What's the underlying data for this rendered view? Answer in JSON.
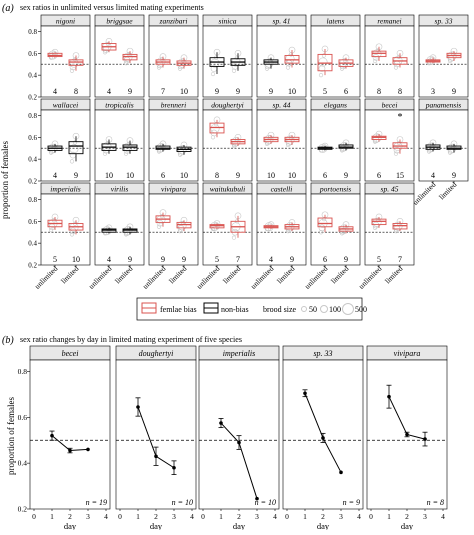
{
  "panel_a": {
    "letter": "(a)",
    "title": "sex ratios in unlimited versus limited mating experiments",
    "ylabel": "proportion of females",
    "yticks": [
      "0.8",
      "0.6",
      "0.4",
      "0.2"
    ],
    "ref_line": 0.5,
    "xtick_labels": [
      "unlimited",
      "limited"
    ],
    "legend": {
      "bias_label": "femlae bias",
      "nonbias_label": "non-bias",
      "size_title": "brood size",
      "size_values": [
        "50",
        "100",
        "500"
      ]
    },
    "colors": {
      "bias": "#d9534f",
      "nonbias": "#000000",
      "points": "#c8c8c8",
      "strip": "#e8e8e8"
    }
  },
  "panel_b": {
    "letter": "(b)",
    "title": "sex ratio changes by day in limited mating experiment of five species",
    "ylabel": "proportion of females",
    "xlabel": "day",
    "yticks": [
      "0.8",
      "0.6",
      "0.4",
      "0.2"
    ],
    "xticks": [
      "0",
      "1",
      "2",
      "3",
      "4"
    ]
  },
  "chart_data": [
    {
      "type": "box",
      "title": "sex ratios in unlimited versus limited mating experiments",
      "ylabel": "proportion of females",
      "ylim": [
        0.2,
        0.85
      ],
      "reference_line": 0.5,
      "categories": [
        "unlimited",
        "limited"
      ],
      "species": [
        {
          "name": "nigoni",
          "n": [
            4,
            8
          ],
          "bias": [
            true,
            true
          ],
          "median": [
            0.58,
            0.52
          ],
          "q1": [
            0.57,
            0.49
          ],
          "q3": [
            0.6,
            0.54
          ],
          "min": [
            0.56,
            0.44
          ],
          "max": [
            0.61,
            0.58
          ]
        },
        {
          "name": "briggsae",
          "n": [
            4,
            9
          ],
          "bias": [
            true,
            true
          ],
          "median": [
            0.66,
            0.57
          ],
          "q1": [
            0.63,
            0.54
          ],
          "q3": [
            0.69,
            0.59
          ],
          "min": [
            0.61,
            0.51
          ],
          "max": [
            0.71,
            0.62
          ]
        },
        {
          "name": "zanzibari",
          "n": [
            7,
            10
          ],
          "bias": [
            true,
            true
          ],
          "median": [
            0.52,
            0.51
          ],
          "q1": [
            0.5,
            0.49
          ],
          "q3": [
            0.54,
            0.53
          ],
          "min": [
            0.47,
            0.46
          ],
          "max": [
            0.57,
            0.56
          ]
        },
        {
          "name": "sinica",
          "n": [
            9,
            9
          ],
          "bias": [
            false,
            false
          ],
          "median": [
            0.52,
            0.52
          ],
          "q1": [
            0.48,
            0.49
          ],
          "q3": [
            0.56,
            0.55
          ],
          "min": [
            0.41,
            0.44
          ],
          "max": [
            0.61,
            0.6
          ]
        },
        {
          "name": "sp. 41",
          "n": [
            9,
            10
          ],
          "bias": [
            false,
            true
          ],
          "median": [
            0.52,
            0.54
          ],
          "q1": [
            0.5,
            0.51
          ],
          "q3": [
            0.54,
            0.58
          ],
          "min": [
            0.46,
            0.47
          ],
          "max": [
            0.56,
            0.63
          ]
        },
        {
          "name": "latens",
          "n": [
            5,
            6
          ],
          "bias": [
            true,
            true
          ],
          "median": [
            0.51,
            0.51
          ],
          "q1": [
            0.44,
            0.48
          ],
          "q3": [
            0.59,
            0.54
          ],
          "min": [
            0.4,
            0.46
          ],
          "max": [
            0.64,
            0.56
          ]
        },
        {
          "name": "remanei",
          "n": [
            8,
            8
          ],
          "bias": [
            true,
            true
          ],
          "median": [
            0.6,
            0.53
          ],
          "q1": [
            0.57,
            0.5
          ],
          "q3": [
            0.62,
            0.56
          ],
          "min": [
            0.53,
            0.47
          ],
          "max": [
            0.66,
            0.6
          ]
        },
        {
          "name": "sp. 33",
          "n": [
            3,
            9
          ],
          "bias": [
            true,
            true
          ],
          "median": [
            0.53,
            0.58
          ],
          "q1": [
            0.52,
            0.56
          ],
          "q3": [
            0.54,
            0.6
          ],
          "min": [
            0.51,
            0.53
          ],
          "max": [
            0.56,
            0.62
          ]
        },
        {
          "name": "wallacei",
          "n": [
            4,
            9
          ],
          "bias": [
            false,
            false
          ],
          "median": [
            0.5,
            0.52
          ],
          "q1": [
            0.48,
            0.45
          ],
          "q3": [
            0.52,
            0.56
          ],
          "min": [
            0.46,
            0.38
          ],
          "max": [
            0.54,
            0.61
          ]
        },
        {
          "name": "tropicalis",
          "n": [
            10,
            10
          ],
          "bias": [
            false,
            false
          ],
          "median": [
            0.51,
            0.51
          ],
          "q1": [
            0.48,
            0.48
          ],
          "q3": [
            0.54,
            0.53
          ],
          "min": [
            0.45,
            0.45
          ],
          "max": [
            0.58,
            0.57
          ]
        },
        {
          "name": "brenneri",
          "n": [
            6,
            10
          ],
          "bias": [
            false,
            false
          ],
          "median": [
            0.5,
            0.49
          ],
          "q1": [
            0.49,
            0.47
          ],
          "q3": [
            0.52,
            0.51
          ],
          "min": [
            0.47,
            0.44
          ],
          "max": [
            0.54,
            0.53
          ]
        },
        {
          "name": "doughertyi",
          "n": [
            8,
            9
          ],
          "bias": [
            true,
            true
          ],
          "median": [
            0.69,
            0.56
          ],
          "q1": [
            0.64,
            0.54
          ],
          "q3": [
            0.73,
            0.58
          ],
          "min": [
            0.6,
            0.52
          ],
          "max": [
            0.76,
            0.6
          ]
        },
        {
          "name": "sp. 44",
          "n": [
            10,
            10
          ],
          "bias": [
            true,
            true
          ],
          "median": [
            0.58,
            0.58
          ],
          "q1": [
            0.56,
            0.56
          ],
          "q3": [
            0.6,
            0.6
          ],
          "min": [
            0.54,
            0.53
          ],
          "max": [
            0.62,
            0.62
          ]
        },
        {
          "name": "elegans",
          "n": [
            6,
            9
          ],
          "bias": [
            false,
            false
          ],
          "median": [
            0.5,
            0.51
          ],
          "q1": [
            0.49,
            0.5
          ],
          "q3": [
            0.51,
            0.53
          ],
          "min": [
            0.48,
            0.48
          ],
          "max": [
            0.52,
            0.55
          ]
        },
        {
          "name": "becei",
          "n": [
            6,
            15
          ],
          "bias": [
            true,
            true
          ],
          "median": [
            0.6,
            0.52
          ],
          "q1": [
            0.58,
            0.5
          ],
          "q3": [
            0.61,
            0.55
          ],
          "min": [
            0.56,
            0.45
          ],
          "max": [
            0.63,
            0.58
          ]
        },
        {
          "name": "panamensis",
          "n": [
            4,
            9
          ],
          "bias": [
            false,
            false
          ],
          "median": [
            0.51,
            0.5
          ],
          "q1": [
            0.49,
            0.49
          ],
          "q3": [
            0.53,
            0.52
          ],
          "min": [
            0.47,
            0.46
          ],
          "max": [
            0.55,
            0.54
          ]
        },
        {
          "name": "imperialis",
          "n": [
            5,
            10
          ],
          "bias": [
            true,
            true
          ],
          "median": [
            0.58,
            0.55
          ],
          "q1": [
            0.55,
            0.52
          ],
          "q3": [
            0.61,
            0.58
          ],
          "min": [
            0.52,
            0.48
          ],
          "max": [
            0.64,
            0.61
          ]
        },
        {
          "name": "virilis",
          "n": [
            4,
            9
          ],
          "bias": [
            false,
            false
          ],
          "median": [
            0.52,
            0.52
          ],
          "q1": [
            0.5,
            0.5
          ],
          "q3": [
            0.53,
            0.53
          ],
          "min": [
            0.49,
            0.48
          ],
          "max": [
            0.54,
            0.55
          ]
        },
        {
          "name": "vivipara",
          "n": [
            9,
            9
          ],
          "bias": [
            true,
            true
          ],
          "median": [
            0.62,
            0.57
          ],
          "q1": [
            0.59,
            0.54
          ],
          "q3": [
            0.65,
            0.59
          ],
          "min": [
            0.55,
            0.51
          ],
          "max": [
            0.68,
            0.61
          ]
        },
        {
          "name": "waitukubuli",
          "n": [
            5,
            7
          ],
          "bias": [
            true,
            true
          ],
          "median": [
            0.56,
            0.55
          ],
          "q1": [
            0.54,
            0.5
          ],
          "q3": [
            0.57,
            0.6
          ],
          "min": [
            0.53,
            0.45
          ],
          "max": [
            0.58,
            0.65
          ]
        },
        {
          "name": "castelli",
          "n": [
            4,
            9
          ],
          "bias": [
            true,
            true
          ],
          "median": [
            0.55,
            0.55
          ],
          "q1": [
            0.54,
            0.53
          ],
          "q3": [
            0.56,
            0.57
          ],
          "min": [
            0.53,
            0.51
          ],
          "max": [
            0.57,
            0.59
          ]
        },
        {
          "name": "portoensis",
          "n": [
            6,
            9
          ],
          "bias": [
            true,
            true
          ],
          "median": [
            0.58,
            0.53
          ],
          "q1": [
            0.55,
            0.51
          ],
          "q3": [
            0.63,
            0.55
          ],
          "min": [
            0.5,
            0.49
          ],
          "max": [
            0.66,
            0.57
          ]
        },
        {
          "name": "sp. 45",
          "n": [
            5,
            7
          ],
          "bias": [
            true,
            true
          ],
          "median": [
            0.6,
            0.56
          ],
          "q1": [
            0.57,
            0.53
          ],
          "q3": [
            0.62,
            0.58
          ],
          "min": [
            0.54,
            0.51
          ],
          "max": [
            0.64,
            0.6
          ]
        }
      ],
      "annotation": {
        "species": "becei",
        "text": "*"
      }
    },
    {
      "type": "line",
      "title": "sex ratio changes by day in limited mating experiment of five species",
      "xlabel": "day",
      "ylabel": "proportion of females",
      "xlim": [
        0,
        4
      ],
      "ylim": [
        0.2,
        0.85
      ],
      "reference_line": 0.5,
      "species": [
        {
          "name": "becei",
          "n_label": "n = 19",
          "x": [
            1,
            2,
            3
          ],
          "y": [
            0.52,
            0.455,
            0.46
          ],
          "err": [
            0.02,
            0.01,
            0.0
          ]
        },
        {
          "name": "doughertyi",
          "n_label": "n = 10",
          "x": [
            1,
            2,
            3
          ],
          "y": [
            0.645,
            0.43,
            0.38
          ],
          "err": [
            0.04,
            0.04,
            0.03
          ]
        },
        {
          "name": "imperialis",
          "n_label": "n = 10",
          "x": [
            1,
            2,
            3
          ],
          "y": [
            0.575,
            0.49,
            0.245
          ],
          "err": [
            0.02,
            0.03,
            0.0
          ]
        },
        {
          "name": "sp. 33",
          "n_label": "n = 9",
          "x": [
            1,
            2,
            3
          ],
          "y": [
            0.705,
            0.51,
            0.36
          ],
          "err": [
            0.015,
            0.02,
            0.0
          ]
        },
        {
          "name": "vivipara",
          "n_label": "n = 8",
          "x": [
            1,
            2,
            3
          ],
          "y": [
            0.69,
            0.525,
            0.505
          ],
          "err": [
            0.05,
            0.01,
            0.03
          ]
        }
      ]
    }
  ]
}
